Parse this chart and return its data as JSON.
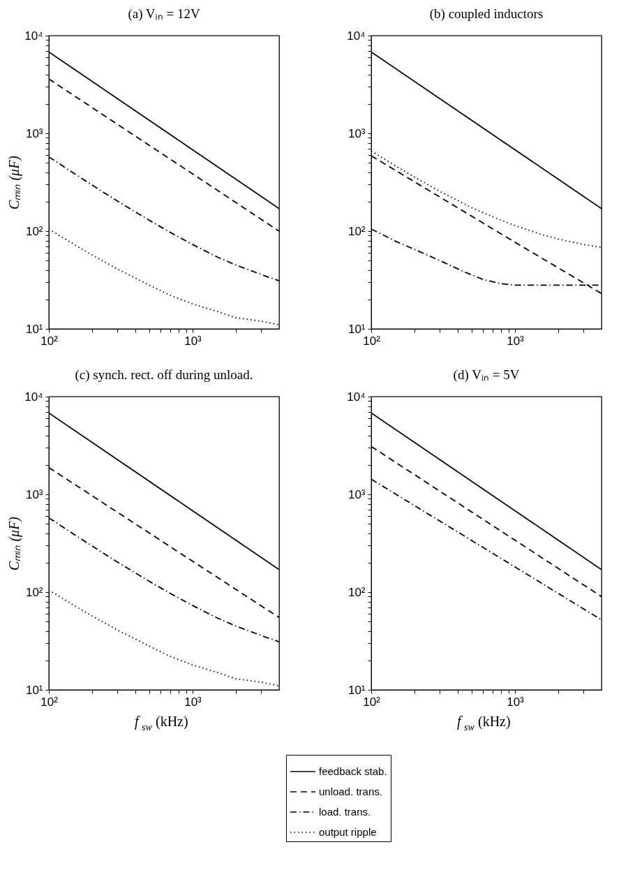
{
  "chart_data": [
    {
      "type": "line",
      "title": "(a)  Vᵢₙ = 12V",
      "ylabel": "Cₘᵢₙ (μF)",
      "log": "xy",
      "legend": "bottom",
      "xlim": [
        100,
        4000
      ],
      "ylim": [
        10,
        10000
      ],
      "xticks": [
        {
          "value": 100,
          "label": "10²"
        },
        {
          "value": 200,
          "label": null
        },
        {
          "value": 300,
          "label": null
        },
        {
          "value": 400,
          "label": null
        },
        {
          "value": 500,
          "label": null
        },
        {
          "value": 600,
          "label": null
        },
        {
          "value": 700,
          "label": null
        },
        {
          "value": 800,
          "label": null
        },
        {
          "value": 900,
          "label": null
        },
        {
          "value": 1000,
          "label": "10³"
        },
        {
          "value": 2000,
          "label": null
        },
        {
          "value": 3000,
          "label": null
        }
      ],
      "yticks": [
        {
          "value": 10,
          "label": "10¹"
        },
        {
          "value": 20,
          "label": null
        },
        {
          "value": 30,
          "label": null
        },
        {
          "value": 40,
          "label": null
        },
        {
          "value": 50,
          "label": null
        },
        {
          "value": 60,
          "label": null
        },
        {
          "value": 70,
          "label": null
        },
        {
          "value": 80,
          "label": null
        },
        {
          "value": 90,
          "label": null
        },
        {
          "value": 100,
          "label": "10²"
        },
        {
          "value": 200,
          "label": null
        },
        {
          "value": 300,
          "label": null
        },
        {
          "value": 400,
          "label": null
        },
        {
          "value": 500,
          "label": null
        },
        {
          "value": 600,
          "label": null
        },
        {
          "value": 700,
          "label": null
        },
        {
          "value": 800,
          "label": null
        },
        {
          "value": 900,
          "label": null
        },
        {
          "value": 1000,
          "label": "10³"
        },
        {
          "value": 2000,
          "label": null
        },
        {
          "value": 3000,
          "label": null
        },
        {
          "value": 4000,
          "label": null
        },
        {
          "value": 5000,
          "label": null
        },
        {
          "value": 6000,
          "label": null
        },
        {
          "value": 7000,
          "label": null
        },
        {
          "value": 8000,
          "label": null
        },
        {
          "value": 9000,
          "label": null
        },
        {
          "value": 10000,
          "label": "10⁴"
        }
      ],
      "series": [
        {
          "name": "feedback stab.",
          "color": "#000000",
          "line_style": "solid",
          "x": [
            100,
            1000,
            4000
          ],
          "values": [
            6800,
            680,
            170
          ]
        },
        {
          "name": "unload. trans.",
          "color": "#000000",
          "line_style": "dashed",
          "x": [
            100,
            1000,
            4000
          ],
          "values": [
            3600,
            385,
            100
          ]
        },
        {
          "name": "load. trans.",
          "color": "#000000",
          "line_style": "dashdot",
          "x": [
            100,
            150,
            200,
            300,
            500,
            700,
            1000,
            1500,
            2000,
            3000,
            4000
          ],
          "values": [
            575,
            389,
            296,
            203,
            129,
            97,
            73,
            54,
            45,
            36,
            31
          ]
        },
        {
          "name": "output ripple",
          "color": "#000000",
          "line_style": "dotted",
          "x": [
            100,
            150,
            200,
            300,
            500,
            700,
            1000,
            1500,
            2000,
            3000,
            4000
          ],
          "values": [
            105,
            73,
            57,
            41,
            28,
            22,
            18,
            15,
            13,
            12,
            11
          ]
        }
      ]
    },
    {
      "type": "line",
      "title": "(b) coupled inductors",
      "log": "xy",
      "xlim": [
        100,
        4000
      ],
      "ylim": [
        10,
        10000
      ],
      "xticks": [
        {
          "value": 100,
          "label": "10²"
        },
        {
          "value": 200,
          "label": null
        },
        {
          "value": 300,
          "label": null
        },
        {
          "value": 400,
          "label": null
        },
        {
          "value": 500,
          "label": null
        },
        {
          "value": 600,
          "label": null
        },
        {
          "value": 700,
          "label": null
        },
        {
          "value": 800,
          "label": null
        },
        {
          "value": 900,
          "label": null
        },
        {
          "value": 1000,
          "label": "10³"
        },
        {
          "value": 2000,
          "label": null
        },
        {
          "value": 3000,
          "label": null
        }
      ],
      "yticks": [
        {
          "value": 10,
          "label": "10¹"
        },
        {
          "value": 20,
          "label": null
        },
        {
          "value": 30,
          "label": null
        },
        {
          "value": 40,
          "label": null
        },
        {
          "value": 50,
          "label": null
        },
        {
          "value": 60,
          "label": null
        },
        {
          "value": 70,
          "label": null
        },
        {
          "value": 80,
          "label": null
        },
        {
          "value": 90,
          "label": null
        },
        {
          "value": 100,
          "label": "10²"
        },
        {
          "value": 200,
          "label": null
        },
        {
          "value": 300,
          "label": null
        },
        {
          "value": 400,
          "label": null
        },
        {
          "value": 500,
          "label": null
        },
        {
          "value": 600,
          "label": null
        },
        {
          "value": 700,
          "label": null
        },
        {
          "value": 800,
          "label": null
        },
        {
          "value": 900,
          "label": null
        },
        {
          "value": 1000,
          "label": "10³"
        },
        {
          "value": 2000,
          "label": null
        },
        {
          "value": 3000,
          "label": null
        },
        {
          "value": 4000,
          "label": null
        },
        {
          "value": 5000,
          "label": null
        },
        {
          "value": 6000,
          "label": null
        },
        {
          "value": 7000,
          "label": null
        },
        {
          "value": 8000,
          "label": null
        },
        {
          "value": 9000,
          "label": null
        },
        {
          "value": 10000,
          "label": "10⁴"
        }
      ],
      "series": [
        {
          "color": "#000000",
          "line_style": "solid",
          "x": [
            100,
            1000,
            4000
          ],
          "values": [
            6800,
            680,
            170
          ]
        },
        {
          "color": "#000000",
          "line_style": "dashed",
          "x": [
            100,
            1000,
            4000
          ],
          "values": [
            590,
            77,
            23
          ]
        },
        {
          "color": "#000000",
          "line_style": "dashdot",
          "x": [
            100,
            150,
            200,
            300,
            450,
            600,
            800,
            1000,
            2000,
            4000
          ],
          "values": [
            105,
            78,
            65,
            50,
            38,
            32,
            29,
            28,
            28,
            28
          ]
        },
        {
          "color": "#000000",
          "line_style": "dotted",
          "x": [
            100,
            150,
            200,
            300,
            500,
            700,
            1000,
            1500,
            2000,
            3000,
            4000
          ],
          "values": [
            660,
            458,
            357,
            255,
            174,
            140,
            114,
            93,
            83,
            73,
            68
          ]
        }
      ]
    },
    {
      "type": "line",
      "title": "(c) synch. rect. off during unload.",
      "xlabel": "f$_{sw}$ (kHz)",
      "ylabel": "Cₘᵢₙ (μF)",
      "log": "xy",
      "xlim": [
        100,
        4000
      ],
      "ylim": [
        10,
        10000
      ],
      "xticks": [
        {
          "value": 100,
          "label": "10²"
        },
        {
          "value": 200,
          "label": null
        },
        {
          "value": 300,
          "label": null
        },
        {
          "value": 400,
          "label": null
        },
        {
          "value": 500,
          "label": null
        },
        {
          "value": 600,
          "label": null
        },
        {
          "value": 700,
          "label": null
        },
        {
          "value": 800,
          "label": null
        },
        {
          "value": 900,
          "label": null
        },
        {
          "value": 1000,
          "label": "10³"
        },
        {
          "value": 2000,
          "label": null
        },
        {
          "value": 3000,
          "label": null
        }
      ],
      "yticks": [
        {
          "value": 10,
          "label": "10¹"
        },
        {
          "value": 20,
          "label": null
        },
        {
          "value": 30,
          "label": null
        },
        {
          "value": 40,
          "label": null
        },
        {
          "value": 50,
          "label": null
        },
        {
          "value": 60,
          "label": null
        },
        {
          "value": 70,
          "label": null
        },
        {
          "value": 80,
          "label": null
        },
        {
          "value": 90,
          "label": null
        },
        {
          "value": 100,
          "label": "10²"
        },
        {
          "value": 200,
          "label": null
        },
        {
          "value": 300,
          "label": null
        },
        {
          "value": 400,
          "label": null
        },
        {
          "value": 500,
          "label": null
        },
        {
          "value": 600,
          "label": null
        },
        {
          "value": 700,
          "label": null
        },
        {
          "value": 800,
          "label": null
        },
        {
          "value": 900,
          "label": null
        },
        {
          "value": 1000,
          "label": "10³"
        },
        {
          "value": 2000,
          "label": null
        },
        {
          "value": 3000,
          "label": null
        },
        {
          "value": 4000,
          "label": null
        },
        {
          "value": 5000,
          "label": null
        },
        {
          "value": 6000,
          "label": null
        },
        {
          "value": 7000,
          "label": null
        },
        {
          "value": 8000,
          "label": null
        },
        {
          "value": 9000,
          "label": null
        },
        {
          "value": 10000,
          "label": "10⁴"
        }
      ],
      "series": [
        {
          "color": "#000000",
          "line_style": "solid",
          "x": [
            100,
            1000,
            4000
          ],
          "values": [
            6800,
            680,
            170
          ]
        },
        {
          "color": "#000000",
          "line_style": "dashed",
          "x": [
            100,
            1000,
            4000
          ],
          "values": [
            1880,
            207,
            55
          ]
        },
        {
          "color": "#000000",
          "line_style": "dashdot",
          "x": [
            100,
            150,
            200,
            300,
            500,
            700,
            1000,
            1500,
            2000,
            3000,
            4000
          ],
          "values": [
            575,
            389,
            296,
            203,
            129,
            97,
            73,
            54,
            45,
            36,
            31
          ]
        },
        {
          "color": "#000000",
          "line_style": "dotted",
          "x": [
            100,
            150,
            200,
            300,
            500,
            700,
            1000,
            1500,
            2000,
            3000,
            4000
          ],
          "values": [
            105,
            73,
            57,
            41,
            28,
            22,
            18,
            15,
            13,
            12,
            11
          ]
        }
      ]
    },
    {
      "type": "line",
      "title": "(d)  Vᵢₙ = 5V",
      "xlabel": "f$_{sw}$ (kHz)",
      "log": "xy",
      "xlim": [
        100,
        4000
      ],
      "ylim": [
        10,
        10000
      ],
      "xticks": [
        {
          "value": 100,
          "label": "10²"
        },
        {
          "value": 200,
          "label": null
        },
        {
          "value": 300,
          "label": null
        },
        {
          "value": 400,
          "label": null
        },
        {
          "value": 500,
          "label": null
        },
        {
          "value": 600,
          "label": null
        },
        {
          "value": 700,
          "label": null
        },
        {
          "value": 800,
          "label": null
        },
        {
          "value": 900,
          "label": null
        },
        {
          "value": 1000,
          "label": "10³"
        },
        {
          "value": 2000,
          "label": null
        },
        {
          "value": 3000,
          "label": null
        }
      ],
      "yticks": [
        {
          "value": 10,
          "label": "10¹"
        },
        {
          "value": 20,
          "label": null
        },
        {
          "value": 30,
          "label": null
        },
        {
          "value": 40,
          "label": null
        },
        {
          "value": 50,
          "label": null
        },
        {
          "value": 60,
          "label": null
        },
        {
          "value": 70,
          "label": null
        },
        {
          "value": 80,
          "label": null
        },
        {
          "value": 90,
          "label": null
        },
        {
          "value": 100,
          "label": "10²"
        },
        {
          "value": 200,
          "label": null
        },
        {
          "value": 300,
          "label": null
        },
        {
          "value": 400,
          "label": null
        },
        {
          "value": 500,
          "label": null
        },
        {
          "value": 600,
          "label": null
        },
        {
          "value": 700,
          "label": null
        },
        {
          "value": 800,
          "label": null
        },
        {
          "value": 900,
          "label": null
        },
        {
          "value": 1000,
          "label": "10³"
        },
        {
          "value": 2000,
          "label": null
        },
        {
          "value": 3000,
          "label": null
        },
        {
          "value": 4000,
          "label": null
        },
        {
          "value": 5000,
          "label": null
        },
        {
          "value": 6000,
          "label": null
        },
        {
          "value": 7000,
          "label": null
        },
        {
          "value": 8000,
          "label": null
        },
        {
          "value": 9000,
          "label": null
        },
        {
          "value": 10000,
          "label": "10⁴"
        }
      ],
      "series": [
        {
          "color": "#000000",
          "line_style": "solid",
          "x": [
            100,
            1000,
            4000
          ],
          "values": [
            6800,
            680,
            170
          ]
        },
        {
          "color": "#000000",
          "line_style": "dashed",
          "x": [
            100,
            1000,
            4000
          ],
          "values": [
            3090,
            340,
            90
          ]
        },
        {
          "color": "#000000",
          "line_style": "dashdot",
          "x": [
            100,
            1000,
            4000
          ],
          "values": [
            1430,
            181,
            52
          ]
        }
      ]
    }
  ]
}
